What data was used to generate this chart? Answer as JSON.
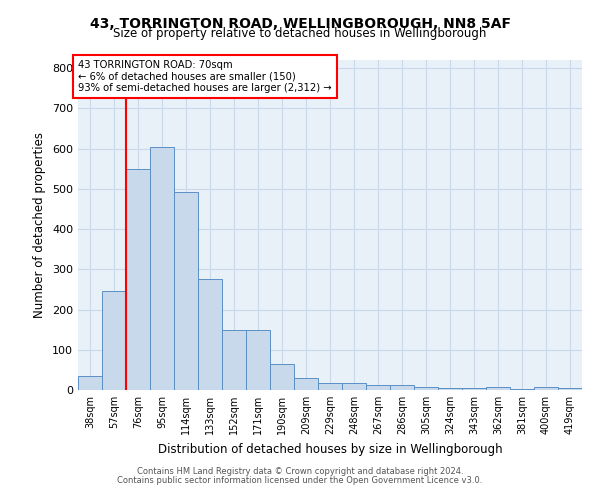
{
  "title_line1": "43, TORRINGTON ROAD, WELLINGBOROUGH, NN8 5AF",
  "title_line2": "Size of property relative to detached houses in Wellingborough",
  "xlabel": "Distribution of detached houses by size in Wellingborough",
  "ylabel": "Number of detached properties",
  "categories": [
    "38sqm",
    "57sqm",
    "76sqm",
    "95sqm",
    "114sqm",
    "133sqm",
    "152sqm",
    "171sqm",
    "190sqm",
    "209sqm",
    "229sqm",
    "248sqm",
    "267sqm",
    "286sqm",
    "305sqm",
    "324sqm",
    "343sqm",
    "362sqm",
    "381sqm",
    "400sqm",
    "419sqm"
  ],
  "values": [
    35,
    245,
    548,
    605,
    493,
    277,
    148,
    148,
    65,
    30,
    18,
    18,
    12,
    12,
    8,
    5,
    5,
    8,
    3,
    8,
    5
  ],
  "bar_color": "#c9d9ec",
  "bar_edge_color": "#5b8fc4",
  "annotation_text_line1": "43 TORRINGTON ROAD: 70sqm",
  "annotation_text_line2": "← 6% of detached houses are smaller (150)",
  "annotation_text_line3": "93% of semi-detached houses are larger (2,312) →",
  "annotation_box_color": "white",
  "annotation_border_color": "red",
  "vline_color": "red",
  "grid_color": "#c8d8e8",
  "bg_color": "#e8f0f8",
  "footer_line1": "Contains HM Land Registry data © Crown copyright and database right 2024.",
  "footer_line2": "Contains public sector information licensed under the Open Government Licence v3.0.",
  "ylim": [
    0,
    820
  ],
  "yticks": [
    0,
    100,
    200,
    300,
    400,
    500,
    600,
    700,
    800
  ]
}
